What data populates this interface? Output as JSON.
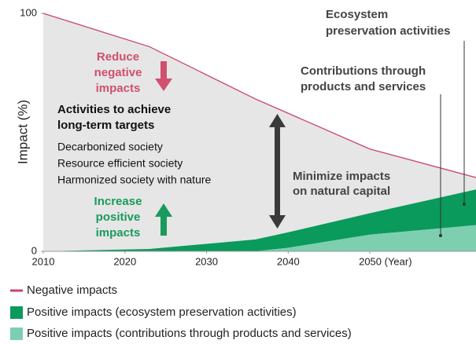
{
  "chart_data": {
    "type": "area",
    "ylabel": "Impact (%)",
    "x": [
      2010,
      2023,
      2036,
      2040,
      2050,
      2063
    ],
    "xlim": [
      2010,
      2063
    ],
    "xticks": [
      2010,
      2020,
      2030,
      2040,
      {
        "value": 2050,
        "label": "2050 (Year)"
      }
    ],
    "ylim": [
      0,
      100
    ],
    "yticks": [
      0,
      100
    ],
    "series": [
      {
        "name": "Negative impacts",
        "color": "#c8466a",
        "values": [
          100,
          86,
          64,
          58,
          43,
          31
        ]
      },
      {
        "name": "Positive impacts (ecosystem preservation activities)",
        "color": "#0a9a5c",
        "values": [
          0,
          1,
          5,
          6.5,
          9,
          15
        ]
      },
      {
        "name": "Positive impacts (contributions through products and services)",
        "color": "#7dcfb0",
        "values": [
          0,
          0,
          0,
          1.5,
          7,
          11
        ]
      }
    ],
    "annotations": [
      {
        "lines": [
          "Reduce",
          "negative",
          "impacts"
        ]
      },
      {
        "lines": [
          "Activities to achieve",
          "long-term targets"
        ]
      },
      {
        "lines": [
          "Decarbonized society",
          "Resource efficient society",
          "Harmonized society with nature"
        ]
      },
      {
        "lines": [
          "Increase",
          "positive",
          "impacts"
        ]
      },
      {
        "lines": [
          "Minimize impacts",
          "on natural capital"
        ]
      },
      {
        "lines": [
          "Contributions through",
          "products and services"
        ]
      },
      {
        "lines": [
          "Ecosystem",
          "preservation activities"
        ]
      }
    ]
  }
}
